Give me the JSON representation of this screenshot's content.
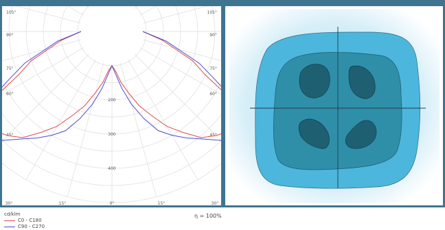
{
  "chart_data": {
    "type": "polar-line",
    "unit": "cd/klm",
    "angle_labels": [
      "105°",
      "90°",
      "75°",
      "60°",
      "45°",
      "30°",
      "15°",
      "0°",
      "15°",
      "30°",
      "45°",
      "60°",
      "75°",
      "90°",
      "105°"
    ],
    "radial_ticks": [
      200,
      300,
      400
    ],
    "series": [
      {
        "name": "C0 - C180",
        "color": "#e04848",
        "angles": [
          -90,
          -80,
          -70,
          -65,
          -60,
          -58,
          -55,
          -52,
          -50,
          -45,
          -40,
          -35,
          -30,
          -25,
          -20,
          -15,
          -10,
          -5,
          0,
          5,
          10,
          15,
          20,
          25,
          30,
          35,
          40,
          45,
          50,
          52,
          55,
          58,
          60,
          65,
          70,
          80,
          90
        ],
        "values": [
          90,
          150,
          250,
          300,
          410,
          445,
          455,
          452,
          450,
          430,
          405,
          360,
          320,
          270,
          230,
          185,
          150,
          115,
          100,
          115,
          150,
          185,
          230,
          270,
          320,
          360,
          405,
          430,
          450,
          452,
          455,
          445,
          410,
          300,
          250,
          150,
          90
        ]
      },
      {
        "name": "C90 - C270",
        "color": "#4a4ad0",
        "angles": [
          -90,
          -80,
          -70,
          -65,
          -60,
          -58,
          -55,
          -52,
          -50,
          -45,
          -40,
          -35,
          -30,
          -25,
          -20,
          -15,
          -10,
          -5,
          0,
          5,
          10,
          15,
          20,
          25,
          30,
          35,
          40,
          45,
          50,
          52,
          55,
          58,
          60,
          65,
          70,
          80,
          90
        ],
        "values": [
          90,
          160,
          270,
          330,
          420,
          455,
          470,
          470,
          465,
          450,
          410,
          380,
          350,
          320,
          270,
          220,
          170,
          125,
          100,
          125,
          170,
          220,
          270,
          320,
          350,
          380,
          410,
          450,
          465,
          470,
          470,
          455,
          420,
          330,
          270,
          160,
          90
        ]
      }
    ]
  },
  "efficiency_label": "η = 100%",
  "legend_title": "cd/klm",
  "colors": {
    "frame": "#3f7490",
    "outer": "#4db6dc",
    "middle": "#2f8fa9",
    "inner": "#1f5f72"
  }
}
